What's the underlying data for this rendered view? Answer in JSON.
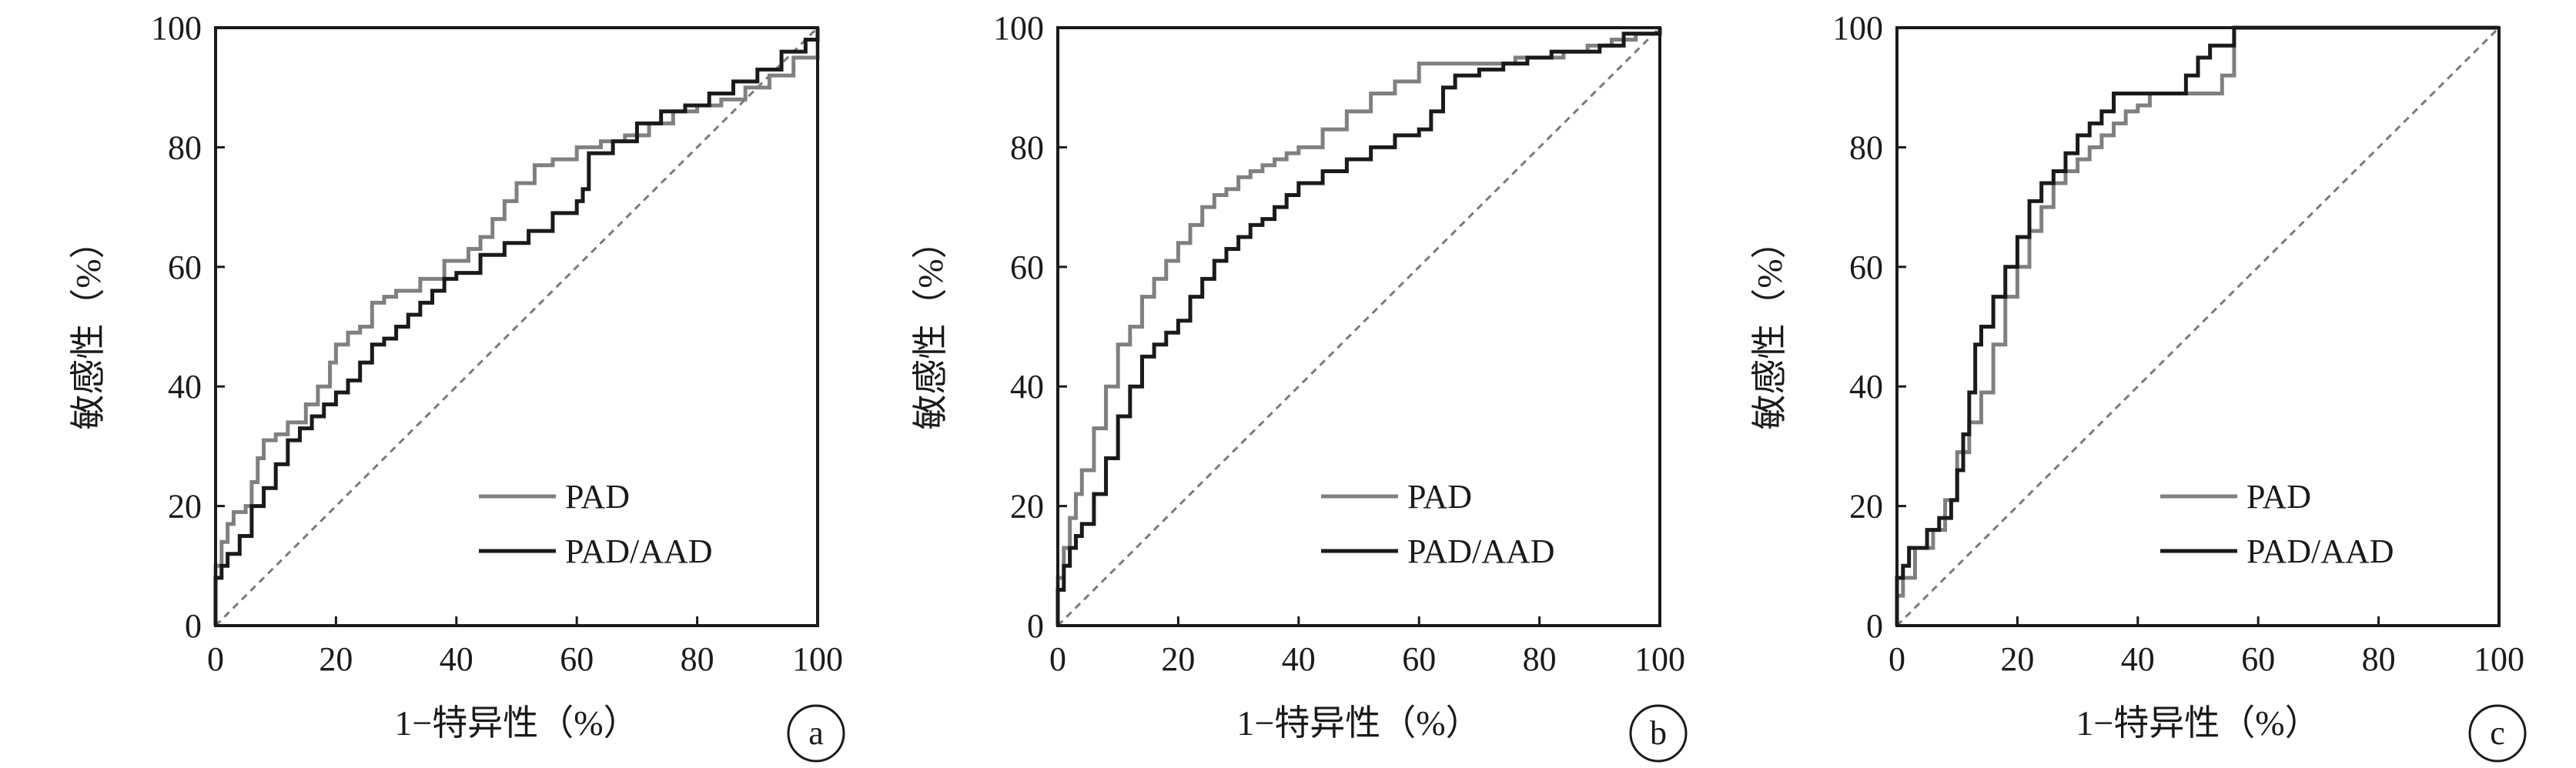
{
  "chart_data": [
    {
      "type": "line",
      "panel_label": "a",
      "xlabel": "1−特异性（%）",
      "ylabel": "敏感性（%）",
      "xlim": [
        0,
        100
      ],
      "ylim": [
        0,
        100
      ],
      "xticks": [
        0,
        20,
        40,
        60,
        80,
        100
      ],
      "yticks": [
        0,
        20,
        40,
        60,
        80,
        100
      ],
      "grid": false,
      "legend_position": "bottom-right",
      "reference_line": "diagonal-dashed",
      "series": [
        {
          "name": "PAD",
          "color": "#808080",
          "x": [
            0,
            0,
            1,
            2,
            3,
            5,
            6,
            7,
            8,
            10,
            12,
            15,
            17,
            19,
            20,
            22,
            24,
            26,
            28,
            30,
            34,
            38,
            42,
            44,
            46,
            48,
            50,
            53,
            56,
            60,
            64,
            68,
            72,
            76,
            80,
            84,
            88,
            92,
            96,
            100
          ],
          "y": [
            0,
            10,
            14,
            17,
            19,
            20,
            24,
            28,
            31,
            32,
            34,
            37,
            40,
            44,
            47,
            49,
            50,
            54,
            55,
            56,
            58,
            61,
            63,
            65,
            68,
            71,
            74,
            77,
            78,
            80,
            81,
            82,
            84,
            86,
            87,
            88,
            90,
            92,
            95,
            100
          ]
        },
        {
          "name": "PAD/AAD",
          "color": "#1a1a1a",
          "x": [
            0,
            0,
            1,
            2,
            4,
            6,
            8,
            10,
            12,
            14,
            16,
            18,
            20,
            22,
            24,
            26,
            28,
            30,
            32,
            34,
            36,
            38,
            40,
            44,
            48,
            52,
            56,
            60,
            61,
            62,
            66,
            70,
            74,
            78,
            82,
            86,
            90,
            94,
            98,
            100
          ],
          "y": [
            0,
            8,
            10,
            12,
            15,
            20,
            23,
            27,
            31,
            33,
            35,
            37,
            39,
            41,
            44,
            47,
            48,
            50,
            52,
            54,
            56,
            58,
            59,
            62,
            64,
            66,
            69,
            71,
            73,
            79,
            81,
            84,
            86,
            87,
            89,
            91,
            93,
            96,
            98,
            100
          ]
        }
      ]
    },
    {
      "type": "line",
      "panel_label": "b",
      "xlabel": "1−特异性（%）",
      "ylabel": "敏感性（%）",
      "xlim": [
        0,
        100
      ],
      "ylim": [
        0,
        100
      ],
      "xticks": [
        0,
        20,
        40,
        60,
        80,
        100
      ],
      "yticks": [
        0,
        20,
        40,
        60,
        80,
        100
      ],
      "grid": false,
      "legend_position": "bottom-right",
      "reference_line": "diagonal-dashed",
      "series": [
        {
          "name": "PAD",
          "color": "#808080",
          "x": [
            0,
            0,
            1,
            2,
            3,
            4,
            6,
            8,
            10,
            12,
            14,
            16,
            18,
            20,
            22,
            24,
            26,
            28,
            30,
            32,
            34,
            36,
            38,
            40,
            44,
            48,
            52,
            56,
            60,
            64,
            68,
            72,
            76,
            80,
            84,
            88,
            92,
            96,
            100
          ],
          "y": [
            0,
            8,
            13,
            18,
            22,
            26,
            33,
            40,
            47,
            50,
            55,
            58,
            61,
            64,
            67,
            70,
            72,
            73,
            75,
            76,
            77,
            78,
            79,
            80,
            83,
            86,
            89,
            91,
            94,
            94,
            94,
            94,
            95,
            95,
            96,
            97,
            98,
            99,
            100
          ]
        },
        {
          "name": "PAD/AAD",
          "color": "#1a1a1a",
          "x": [
            0,
            0,
            1,
            2,
            3,
            4,
            6,
            8,
            10,
            12,
            14,
            16,
            18,
            20,
            22,
            24,
            26,
            28,
            30,
            32,
            34,
            36,
            38,
            40,
            44,
            48,
            52,
            56,
            60,
            62,
            64,
            66,
            70,
            74,
            78,
            82,
            86,
            90,
            94,
            100
          ],
          "y": [
            0,
            6,
            10,
            13,
            15,
            17,
            22,
            28,
            35,
            40,
            45,
            47,
            49,
            51,
            55,
            58,
            61,
            63,
            65,
            67,
            68,
            70,
            72,
            74,
            76,
            78,
            80,
            82,
            83,
            86,
            90,
            92,
            93,
            94,
            95,
            96,
            96,
            97,
            99,
            100
          ]
        }
      ]
    },
    {
      "type": "line",
      "panel_label": "c",
      "xlabel": "1−特异性（%）",
      "ylabel": "敏感性（%）",
      "xlim": [
        0,
        100
      ],
      "ylim": [
        0,
        100
      ],
      "xticks": [
        0,
        20,
        40,
        60,
        80,
        100
      ],
      "yticks": [
        0,
        20,
        40,
        60,
        80,
        100
      ],
      "grid": false,
      "legend_position": "bottom-right",
      "reference_line": "diagonal-dashed",
      "series": [
        {
          "name": "PAD",
          "color": "#808080",
          "x": [
            0,
            0,
            1,
            3,
            5,
            6,
            8,
            10,
            12,
            14,
            16,
            18,
            20,
            22,
            24,
            26,
            28,
            30,
            32,
            34,
            36,
            38,
            40,
            42,
            44,
            48,
            50,
            52,
            54,
            56,
            60,
            70,
            80,
            90,
            100
          ],
          "y": [
            0,
            5,
            8,
            13,
            13,
            16,
            21,
            29,
            34,
            39,
            47,
            55,
            60,
            66,
            70,
            74,
            76,
            78,
            80,
            82,
            84,
            86,
            87,
            89,
            89,
            89,
            89,
            89,
            92,
            100,
            100,
            100,
            100,
            100,
            100
          ]
        },
        {
          "name": "PAD/AAD",
          "color": "#1a1a1a",
          "x": [
            0,
            0,
            1,
            2,
            5,
            7,
            9,
            10,
            11,
            12,
            13,
            14,
            16,
            18,
            20,
            22,
            24,
            26,
            28,
            30,
            32,
            34,
            36,
            38,
            40,
            44,
            48,
            50,
            52,
            54,
            56,
            60,
            70,
            80,
            90,
            100
          ],
          "y": [
            0,
            8,
            10,
            13,
            16,
            18,
            21,
            26,
            32,
            39,
            47,
            50,
            55,
            60,
            65,
            71,
            74,
            76,
            79,
            82,
            84,
            86,
            89,
            89,
            89,
            89,
            92,
            95,
            97,
            97,
            100,
            100,
            100,
            100,
            100,
            100
          ]
        }
      ]
    }
  ]
}
